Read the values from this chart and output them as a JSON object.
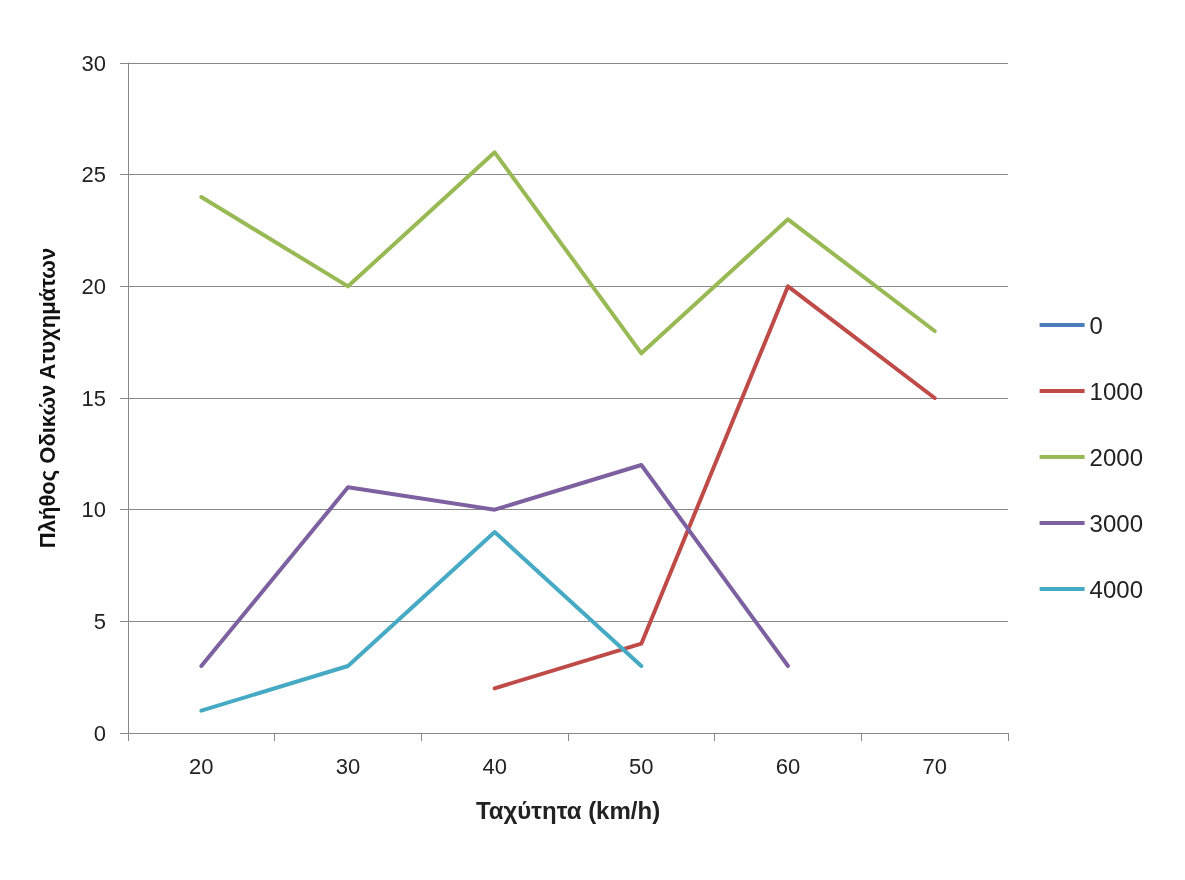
{
  "chart_data": {
    "type": "line",
    "xlabel": "Ταχύτητα (km/h)",
    "ylabel": "Πλήθος Οδικών Ατυχημάτων",
    "categories": [
      "20",
      "30",
      "40",
      "50",
      "60",
      "70"
    ],
    "series": [
      {
        "name": "0",
        "color": "#4a7ebb",
        "values": [
          null,
          null,
          null,
          null,
          null,
          null
        ]
      },
      {
        "name": "1000",
        "color": "#be4b48",
        "values": [
          null,
          null,
          2,
          4,
          20,
          15
        ]
      },
      {
        "name": "2000",
        "color": "#98b954",
        "values": [
          24,
          20,
          26,
          17,
          23,
          18
        ]
      },
      {
        "name": "3000",
        "color": "#7d60a0",
        "values": [
          3,
          11,
          10,
          12,
          3,
          null
        ]
      },
      {
        "name": "4000",
        "color": "#46aac5",
        "values": [
          1,
          3,
          9,
          3,
          null,
          null
        ]
      }
    ],
    "ylim": [
      0,
      30
    ],
    "yticks": [
      0,
      5,
      10,
      15,
      20,
      25,
      30
    ],
    "grid": "y",
    "legend": "right",
    "marker": "none",
    "line_style": "solid"
  }
}
